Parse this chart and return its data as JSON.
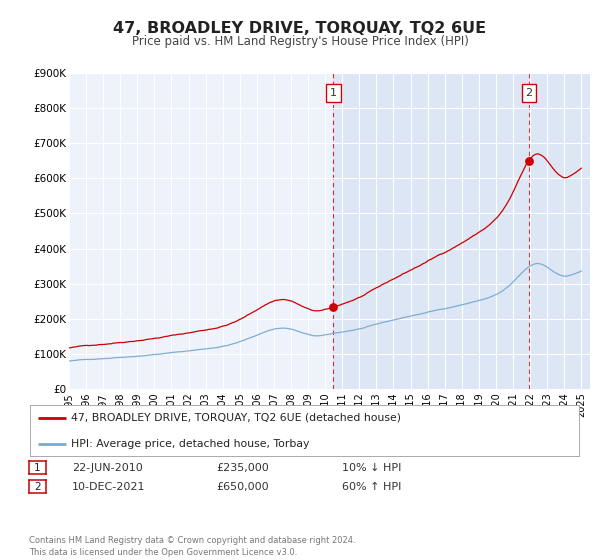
{
  "title": "47, BROADLEY DRIVE, TORQUAY, TQ2 6UE",
  "subtitle": "Price paid vs. HM Land Registry's House Price Index (HPI)",
  "bg_color": "#ffffff",
  "plot_bg_color": "#eef2fa",
  "plot_bg_color_shaded": "#dde6f5",
  "grid_color": "#ffffff",
  "hpi_color": "#7aaad0",
  "price_color": "#cc0000",
  "ylim": [
    0,
    900000
  ],
  "yticks": [
    0,
    100000,
    200000,
    300000,
    400000,
    500000,
    600000,
    700000,
    800000,
    900000
  ],
  "ytick_labels": [
    "£0",
    "£100K",
    "£200K",
    "£300K",
    "£400K",
    "£500K",
    "£600K",
    "£700K",
    "£800K",
    "£900K"
  ],
  "xlim_start": 1995.0,
  "xlim_end": 2025.5,
  "xtick_years": [
    1995,
    1996,
    1997,
    1998,
    1999,
    2000,
    2001,
    2002,
    2003,
    2004,
    2005,
    2006,
    2007,
    2008,
    2009,
    2010,
    2011,
    2012,
    2013,
    2014,
    2015,
    2016,
    2017,
    2018,
    2019,
    2020,
    2021,
    2022,
    2023,
    2024,
    2025
  ],
  "sale1_date": 2010.47,
  "sale1_price": 235000,
  "sale1_label": "1",
  "sale2_date": 2021.94,
  "sale2_price": 650000,
  "sale2_label": "2",
  "legend_label_price": "47, BROADLEY DRIVE, TORQUAY, TQ2 6UE (detached house)",
  "legend_label_hpi": "HPI: Average price, detached house, Torbay",
  "table_row1": [
    "1",
    "22-JUN-2010",
    "£235,000",
    "10% ↓ HPI"
  ],
  "table_row2": [
    "2",
    "10-DEC-2021",
    "£650,000",
    "60% ↑ HPI"
  ],
  "footer": "Contains HM Land Registry data © Crown copyright and database right 2024.\nThis data is licensed under the Open Government Licence v3.0."
}
